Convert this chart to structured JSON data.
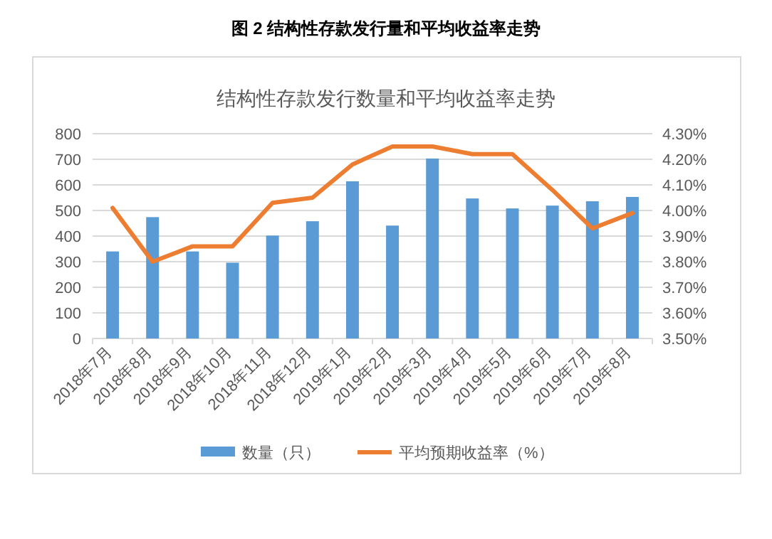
{
  "chart_data": {
    "type": "bar",
    "title": "图 2  结构性存款发行量和平均收益率走势",
    "subtitle": "结构性存款发行数量和平均收益率走势",
    "categories": [
      "2018年7月",
      "2018年8月",
      "2018年9月",
      "2018年10月",
      "2018年11月",
      "2018年12月",
      "2019年1月",
      "2019年2月",
      "2019年3月",
      "2019年4月",
      "2019年5月",
      "2019年6月",
      "2019年7月",
      "2019年8月"
    ],
    "series": [
      {
        "name": "数量（只）",
        "color": "#5b9bd5",
        "values": [
          340,
          474,
          340,
          296,
          402,
          458,
          614,
          441,
          703,
          547,
          508,
          519,
          536,
          553
        ]
      },
      {
        "name": "平均预期收益率（%）",
        "type": "line",
        "axis": "y2",
        "color": "#ed7d31",
        "values": [
          4.01,
          3.8,
          3.86,
          3.86,
          4.03,
          4.05,
          4.18,
          4.25,
          4.25,
          4.22,
          4.22,
          4.08,
          3.93,
          3.99
        ]
      }
    ],
    "ylim": [
      0,
      800
    ],
    "yticks": [
      0,
      100,
      200,
      300,
      400,
      500,
      600,
      700,
      800
    ],
    "y2lim": [
      3.5,
      4.3
    ],
    "y2ticks": [
      {
        "value": 3.5,
        "label": "3.50%"
      },
      {
        "value": 3.6,
        "label": "3.60%"
      },
      {
        "value": 3.7,
        "label": "3.70%"
      },
      {
        "value": 3.8,
        "label": "3.80%"
      },
      {
        "value": 3.9,
        "label": "3.90%"
      },
      {
        "value": 4.0,
        "label": "4.00%"
      },
      {
        "value": 4.1,
        "label": "4.10%"
      },
      {
        "value": 4.2,
        "label": "4.20%"
      },
      {
        "value": 4.3,
        "label": "4.30%"
      }
    ],
    "grid": "y",
    "legend": "bottom",
    "marker": "none"
  }
}
